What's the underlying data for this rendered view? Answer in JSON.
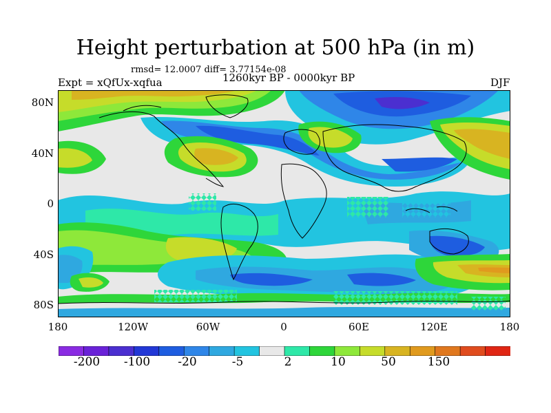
{
  "header": {
    "title": "Height perturbation at 500 hPa (in m)",
    "stats": "rmsd= 12.0007 diff= 3.77154e-08",
    "expt": "Expt = xQfUx-xqfua",
    "period": "1260kyr BP - 0000kyr BP",
    "season": "DJF"
  },
  "axes": {
    "lat_labels": [
      "80N",
      "40N",
      "0",
      "40S",
      "80S"
    ],
    "lon_labels": [
      "180",
      "120W",
      "60W",
      "0",
      "60E",
      "120E",
      "180"
    ]
  },
  "colorbar": {
    "colors": [
      "#8a2be2",
      "#6a22d8",
      "#4b2fd0",
      "#2238d6",
      "#1e5de0",
      "#2f86e8",
      "#2fa8e0",
      "#22c4e0",
      "#e8e8e8",
      "#2ee8a8",
      "#2ed63a",
      "#8ee83a",
      "#c6dc2a",
      "#d8b421",
      "#e09a1e",
      "#e0781e",
      "#e04c1e",
      "#e02614"
    ],
    "tick_labels": [
      "-200",
      "-100",
      "-20",
      "-5",
      "2",
      "10",
      "50",
      "150"
    ]
  }
}
